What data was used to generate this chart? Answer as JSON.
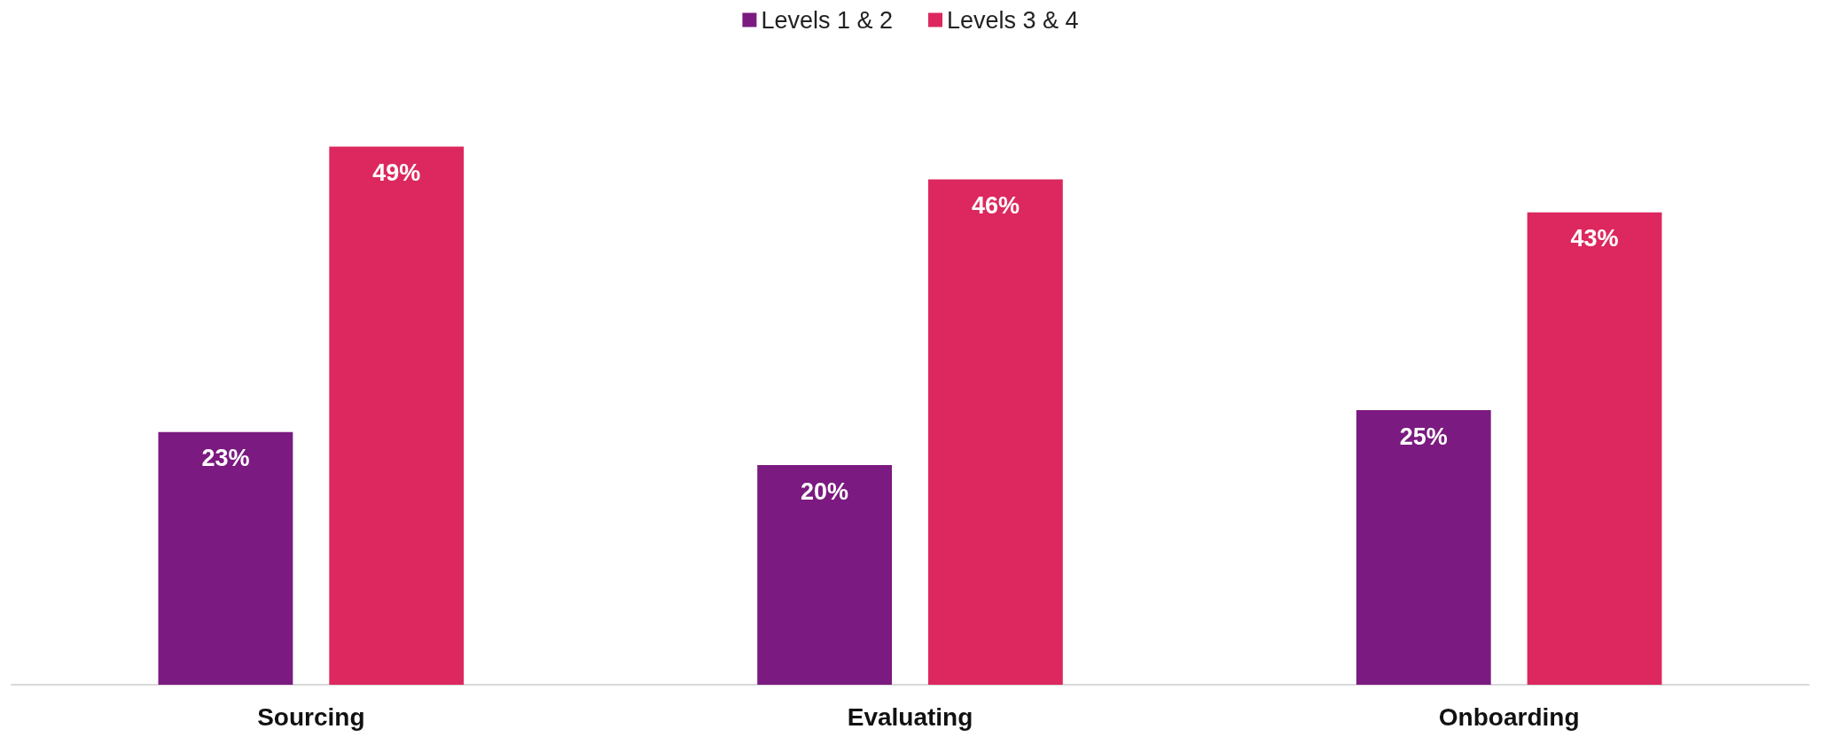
{
  "chart_data": {
    "type": "bar",
    "categories": [
      "Sourcing",
      "Evaluating",
      "Onboarding"
    ],
    "series": [
      {
        "name": "Levels 1 & 2",
        "color": "#7b1a80",
        "values": [
          23,
          20,
          25
        ],
        "value_labels": [
          "23%",
          "20%",
          "25%"
        ]
      },
      {
        "name": "Levels 3 & 4",
        "color": "#dc285e",
        "values": [
          49,
          46,
          43
        ],
        "value_labels": [
          "49%",
          "46%",
          "43%"
        ]
      }
    ],
    "legend": "top"
  }
}
